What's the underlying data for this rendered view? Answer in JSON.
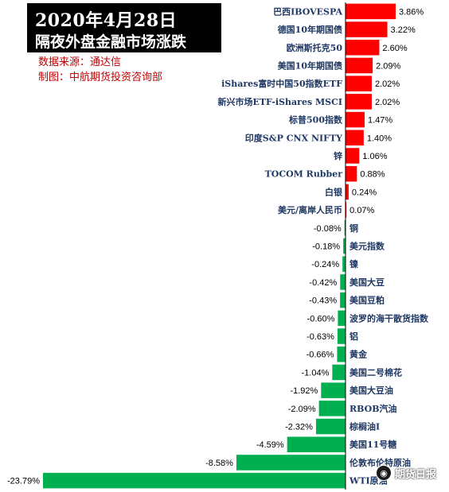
{
  "header": {
    "title_line1": "2020年4月28日",
    "title_line2": "隔夜外盘金融市场涨跌",
    "source": "数据来源：通达信",
    "producer": "制图：中航期货投资咨询部"
  },
  "watermark": {
    "text": "期货日报",
    "icon": "wechat-icon"
  },
  "colors": {
    "positive": "#ff0000",
    "negative": "#00b050",
    "axis": "#000000",
    "label": "#1f3864"
  },
  "chart_data": {
    "type": "bar",
    "orientation": "horizontal",
    "title": "隔夜外盘金融市场涨跌",
    "unit": "%",
    "xlim": [
      -23.79,
      3.86
    ],
    "grid": false,
    "legend": "none",
    "categories": [
      "巴西IBOVESPA",
      "德国10年期国债",
      "欧洲斯托克50",
      "美国10年期国债",
      "iShares富时中国50指数ETF",
      "新兴市场ETF-iShares MSCI",
      "标普500指数",
      "印度S&P CNX NIFTY",
      "锌",
      "TOCOM Rubber",
      "白银",
      "美元/离岸人民币",
      "铜",
      "美元指数",
      "镍",
      "美国大豆",
      "美国豆粕",
      "波罗的海干散货指数",
      "铝",
      "黄金",
      "美国二号棉花",
      "美国大豆油",
      "RBOB汽油",
      "棕榈油I",
      "美国11号糖",
      "伦敦布伦特原油",
      "WTI原油"
    ],
    "values": [
      3.86,
      3.22,
      2.6,
      2.09,
      2.02,
      2.02,
      1.47,
      1.4,
      1.06,
      0.88,
      0.24,
      0.07,
      -0.08,
      -0.18,
      -0.24,
      -0.42,
      -0.43,
      -0.6,
      -0.63,
      -0.66,
      -1.04,
      -1.92,
      -2.09,
      -2.32,
      -4.59,
      -8.58,
      -23.79
    ],
    "value_labels": [
      "3.86%",
      "3.22%",
      "2.60%",
      "2.09%",
      "2.02%",
      "2.02%",
      "1.47%",
      "1.40%",
      "1.06%",
      "0.88%",
      "0.24%",
      "0.07%",
      "-0.08%",
      "-0.18%",
      "-0.24%",
      "-0.42%",
      "-0.43%",
      "-0.60%",
      "-0.63%",
      "-0.66%",
      "-1.04%",
      "-1.92%",
      "-2.09%",
      "-2.32%",
      "-4.59%",
      "-8.58%",
      "-23.79%"
    ]
  }
}
